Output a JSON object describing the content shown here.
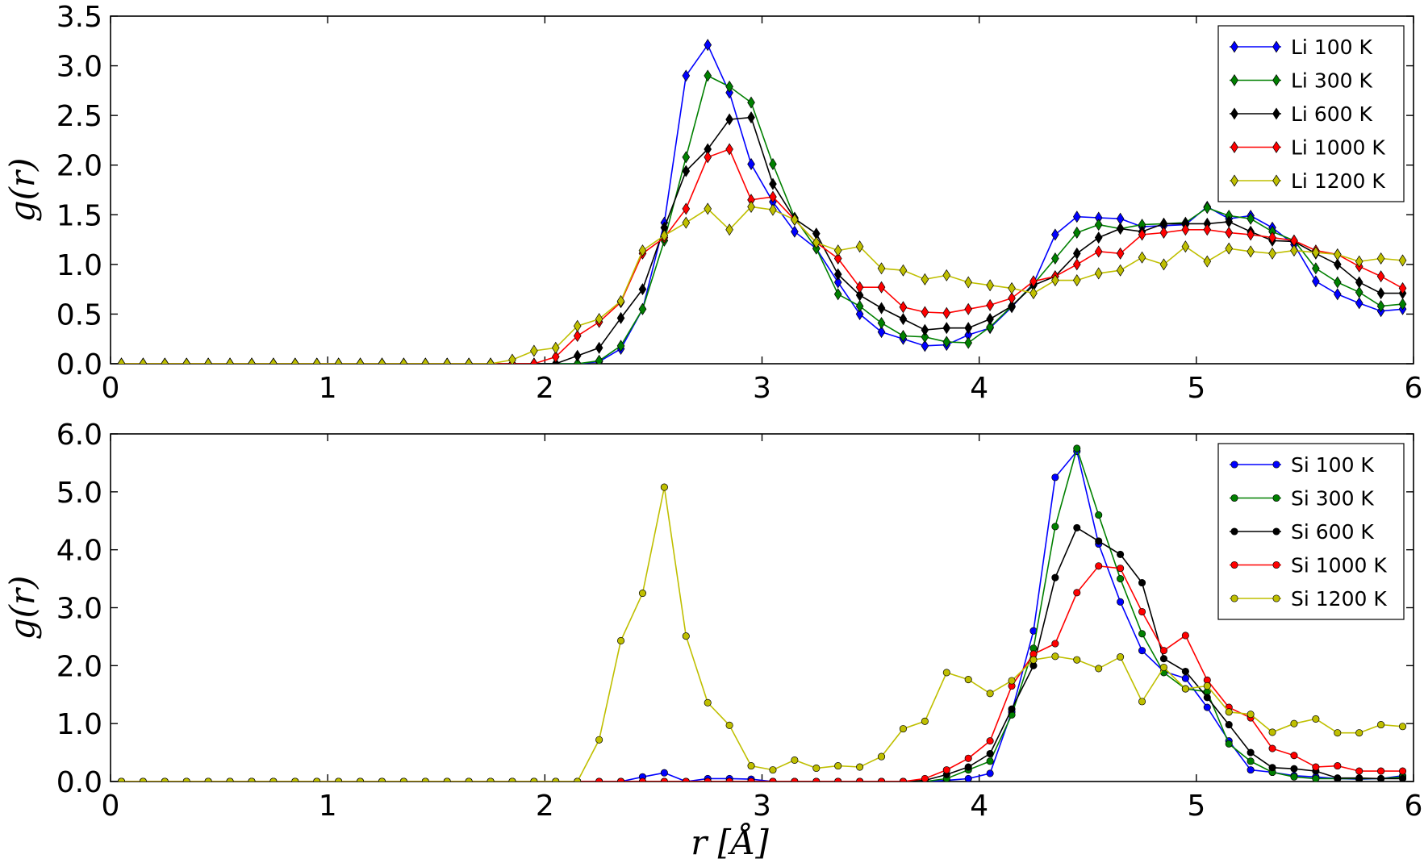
{
  "chart_data": [
    {
      "type": "line",
      "ylabel": "g(r)",
      "xlabel": "",
      "xlim": [
        0,
        6
      ],
      "ylim": [
        0,
        3.5
      ],
      "xticks": [
        "0",
        "1",
        "2",
        "3",
        "4",
        "5",
        "6"
      ],
      "yticks": [
        "0.0",
        "0.5",
        "1.0",
        "1.5",
        "2.0",
        "2.5",
        "3.0",
        "3.5"
      ],
      "marker": "diamond",
      "legend_position": "top-right",
      "grid": false,
      "x": [
        0.05,
        0.15,
        0.25,
        0.35,
        0.45,
        0.55,
        0.65,
        0.75,
        0.85,
        0.95,
        1.05,
        1.15,
        1.25,
        1.35,
        1.45,
        1.55,
        1.65,
        1.75,
        1.85,
        1.95,
        2.05,
        2.15,
        2.25,
        2.35,
        2.45,
        2.55,
        2.65,
        2.75,
        2.85,
        2.95,
        3.05,
        3.15,
        3.25,
        3.35,
        3.45,
        3.55,
        3.65,
        3.75,
        3.85,
        3.95,
        4.05,
        4.15,
        4.25,
        4.35,
        4.45,
        4.55,
        4.65,
        4.75,
        4.85,
        4.95,
        5.05,
        5.15,
        5.25,
        5.35,
        5.45,
        5.55,
        5.65,
        5.75,
        5.85,
        5.95
      ],
      "series": [
        {
          "name": "Li 100 K",
          "color": "#0000ff",
          "values": [
            0,
            0,
            0,
            0,
            0,
            0,
            0,
            0,
            0,
            0,
            0,
            0,
            0,
            0,
            0,
            0,
            0,
            0,
            0,
            0,
            0,
            0,
            0.02,
            0.15,
            0.55,
            1.42,
            2.9,
            3.21,
            2.73,
            2.01,
            1.63,
            1.33,
            1.16,
            0.82,
            0.5,
            0.32,
            0.25,
            0.18,
            0.19,
            0.29,
            0.36,
            0.57,
            0.81,
            1.3,
            1.48,
            1.47,
            1.46,
            1.38,
            1.39,
            1.4,
            1.58,
            1.46,
            1.49,
            1.37,
            1.2,
            0.83,
            0.7,
            0.61,
            0.53,
            0.55
          ]
        },
        {
          "name": "Li 300 K",
          "color": "#008000",
          "values": [
            0,
            0,
            0,
            0,
            0,
            0,
            0,
            0,
            0,
            0,
            0,
            0,
            0,
            0,
            0,
            0,
            0,
            0,
            0,
            0,
            0,
            0,
            0.03,
            0.18,
            0.55,
            1.24,
            2.08,
            2.9,
            2.79,
            2.63,
            2.01,
            1.47,
            1.16,
            0.7,
            0.58,
            0.41,
            0.28,
            0.27,
            0.22,
            0.21,
            0.37,
            0.58,
            0.8,
            1.06,
            1.32,
            1.4,
            1.36,
            1.4,
            1.41,
            1.42,
            1.57,
            1.49,
            1.46,
            1.33,
            1.24,
            0.96,
            0.82,
            0.72,
            0.58,
            0.6
          ]
        },
        {
          "name": "Li 600 K",
          "color": "#000000",
          "values": [
            0,
            0,
            0,
            0,
            0,
            0,
            0,
            0,
            0,
            0,
            0,
            0,
            0,
            0,
            0,
            0,
            0,
            0,
            0,
            0,
            0,
            0.08,
            0.16,
            0.46,
            0.75,
            1.37,
            1.94,
            2.16,
            2.46,
            2.48,
            1.81,
            1.46,
            1.31,
            0.9,
            0.69,
            0.56,
            0.45,
            0.34,
            0.36,
            0.36,
            0.45,
            0.58,
            0.79,
            0.88,
            1.11,
            1.27,
            1.36,
            1.33,
            1.41,
            1.41,
            1.41,
            1.43,
            1.33,
            1.24,
            1.23,
            1.11,
            1.0,
            0.82,
            0.71,
            0.71
          ]
        },
        {
          "name": "Li 1000 K",
          "color": "#ff0000",
          "values": [
            0,
            0,
            0,
            0,
            0,
            0,
            0,
            0,
            0,
            0,
            0,
            0,
            0,
            0,
            0,
            0,
            0,
            0,
            0,
            0,
            0.07,
            0.28,
            0.42,
            0.62,
            1.11,
            1.27,
            1.56,
            2.08,
            2.16,
            1.65,
            1.68,
            1.45,
            1.22,
            1.06,
            0.77,
            0.77,
            0.57,
            0.52,
            0.51,
            0.55,
            0.59,
            0.66,
            0.83,
            0.88,
            1.0,
            1.13,
            1.11,
            1.3,
            1.32,
            1.35,
            1.35,
            1.32,
            1.3,
            1.27,
            1.24,
            1.14,
            1.1,
            0.98,
            0.88,
            0.76
          ]
        },
        {
          "name": "Li 1200 K",
          "color": "#bfbf00",
          "values": [
            0,
            0,
            0,
            0,
            0,
            0,
            0,
            0,
            0,
            0,
            0,
            0,
            0,
            0,
            0,
            0,
            0,
            0,
            0.04,
            0.13,
            0.16,
            0.38,
            0.45,
            0.63,
            1.14,
            1.29,
            1.42,
            1.56,
            1.35,
            1.58,
            1.55,
            1.45,
            1.22,
            1.14,
            1.18,
            0.96,
            0.94,
            0.85,
            0.89,
            0.82,
            0.79,
            0.76,
            0.71,
            0.84,
            0.84,
            0.91,
            0.94,
            1.07,
            1.0,
            1.18,
            1.03,
            1.16,
            1.13,
            1.11,
            1.14,
            1.12,
            1.1,
            1.03,
            1.06,
            1.04
          ]
        }
      ]
    },
    {
      "type": "line",
      "ylabel": "g(r)",
      "xlabel": "r [Å]",
      "xlim": [
        0,
        6
      ],
      "ylim": [
        0,
        6
      ],
      "xticks": [
        "0",
        "1",
        "2",
        "3",
        "4",
        "5",
        "6"
      ],
      "yticks": [
        "0.0",
        "1.0",
        "2.0",
        "3.0",
        "4.0",
        "5.0",
        "6.0"
      ],
      "marker": "circle",
      "legend_position": "top-right",
      "grid": false,
      "x": [
        0.05,
        0.15,
        0.25,
        0.35,
        0.45,
        0.55,
        0.65,
        0.75,
        0.85,
        0.95,
        1.05,
        1.15,
        1.25,
        1.35,
        1.45,
        1.55,
        1.65,
        1.75,
        1.85,
        1.95,
        2.05,
        2.15,
        2.25,
        2.35,
        2.45,
        2.55,
        2.65,
        2.75,
        2.85,
        2.95,
        3.05,
        3.15,
        3.25,
        3.35,
        3.45,
        3.55,
        3.65,
        3.75,
        3.85,
        3.95,
        4.05,
        4.15,
        4.25,
        4.35,
        4.45,
        4.55,
        4.65,
        4.75,
        4.85,
        4.95,
        5.05,
        5.15,
        5.25,
        5.35,
        5.45,
        5.55,
        5.65,
        5.75,
        5.85,
        5.95
      ],
      "series": [
        {
          "name": "Si 100 K",
          "color": "#0000ff",
          "values": [
            0,
            0,
            0,
            0,
            0,
            0,
            0,
            0,
            0,
            0,
            0,
            0,
            0,
            0,
            0,
            0,
            0,
            0,
            0,
            0,
            0,
            0,
            0,
            0,
            0.08,
            0.15,
            0,
            0.05,
            0.05,
            0.04,
            0,
            0,
            0,
            0,
            0,
            0,
            0,
            0,
            0.02,
            0.05,
            0.14,
            1.2,
            2.6,
            5.25,
            5.7,
            4.1,
            3.1,
            2.26,
            1.9,
            1.78,
            1.28,
            0.7,
            0.2,
            0.16,
            0.1,
            0.08,
            0.05,
            0.04,
            0.05,
            0.1
          ]
        },
        {
          "name": "Si 300 K",
          "color": "#008000",
          "values": [
            0,
            0,
            0,
            0,
            0,
            0,
            0,
            0,
            0,
            0,
            0,
            0,
            0,
            0,
            0,
            0,
            0,
            0,
            0,
            0,
            0,
            0,
            0,
            0,
            0,
            0,
            0,
            0,
            0,
            0,
            0,
            0,
            0,
            0,
            0,
            0,
            0,
            0,
            0.05,
            0.2,
            0.35,
            1.15,
            2.3,
            4.4,
            5.75,
            4.6,
            3.5,
            2.55,
            1.88,
            1.6,
            1.55,
            0.65,
            0.35,
            0.16,
            0.08,
            0.05,
            0.05,
            0.05,
            0.05,
            0.08
          ]
        },
        {
          "name": "Si 600 K",
          "color": "#000000",
          "values": [
            0,
            0,
            0,
            0,
            0,
            0,
            0,
            0,
            0,
            0,
            0,
            0,
            0,
            0,
            0,
            0,
            0,
            0,
            0,
            0,
            0,
            0,
            0,
            0,
            0,
            0,
            0,
            0,
            0,
            0,
            0,
            0,
            0,
            0,
            0,
            0,
            0,
            0.02,
            0.12,
            0.25,
            0.48,
            1.25,
            2.0,
            3.52,
            4.38,
            4.15,
            3.92,
            3.43,
            2.12,
            1.9,
            1.45,
            0.98,
            0.5,
            0.24,
            0.22,
            0.18,
            0.06,
            0.06,
            0.05,
            0.05
          ]
        },
        {
          "name": "Si 1000 K",
          "color": "#ff0000",
          "values": [
            0,
            0,
            0,
            0,
            0,
            0,
            0,
            0,
            0,
            0,
            0,
            0,
            0,
            0,
            0,
            0,
            0,
            0,
            0,
            0,
            0,
            0,
            0,
            0,
            0,
            0,
            0,
            0,
            0,
            0,
            0,
            0,
            0,
            0,
            0,
            0,
            0,
            0.05,
            0.2,
            0.4,
            0.7,
            1.65,
            2.2,
            2.38,
            3.26,
            3.72,
            3.68,
            2.93,
            2.26,
            2.52,
            1.75,
            1.28,
            1.1,
            0.57,
            0.45,
            0.25,
            0.27,
            0.18,
            0.18,
            0.18
          ]
        },
        {
          "name": "Si 1200 K",
          "color": "#bfbf00",
          "values": [
            0,
            0,
            0,
            0,
            0,
            0,
            0,
            0,
            0,
            0,
            0,
            0,
            0,
            0,
            0,
            0,
            0,
            0,
            0,
            0,
            0,
            0,
            0.72,
            2.43,
            3.25,
            5.08,
            2.51,
            1.36,
            0.97,
            0.27,
            0.2,
            0.37,
            0.23,
            0.27,
            0.25,
            0.43,
            0.91,
            1.04,
            1.88,
            1.76,
            1.52,
            1.74,
            2.1,
            2.16,
            2.1,
            1.95,
            2.15,
            1.38,
            1.97,
            1.6,
            1.65,
            1.2,
            1.16,
            0.85,
            1.0,
            1.08,
            0.84,
            0.84,
            0.98,
            0.95
          ]
        }
      ]
    }
  ]
}
